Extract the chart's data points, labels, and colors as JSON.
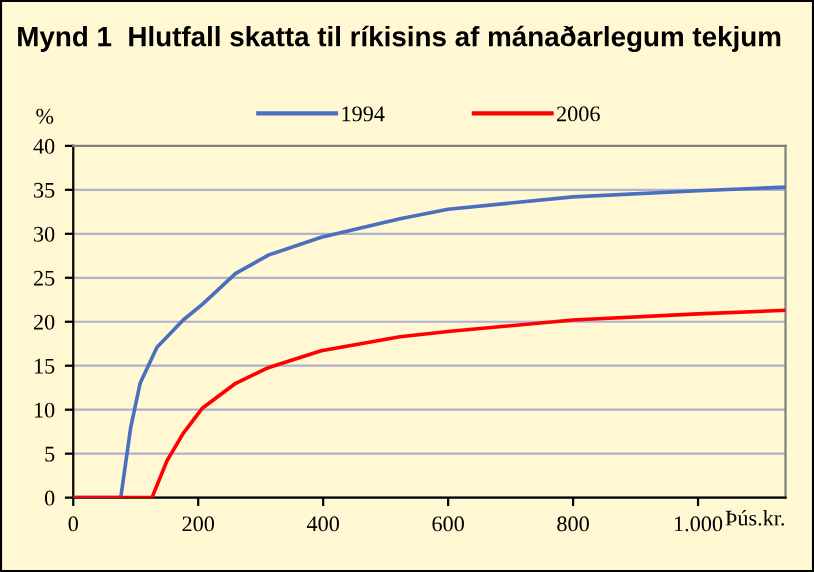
{
  "chart_data": {
    "type": "line",
    "title": "Mynd 1  Hlutfall skatta til ríkisins af mánaðarlegum tekjum",
    "xlabel": "Þús.kr.",
    "ylabel": "%",
    "series": [
      {
        "name": "1994",
        "color": "#4a6fbf",
        "x": [
          0,
          76,
          92,
          107,
          134,
          176,
          207,
          260,
          313,
          397,
          523,
          600,
          800,
          1000,
          1140
        ],
        "values": [
          0,
          0,
          8.0,
          13,
          17.1,
          20.2,
          22,
          25.5,
          27.6,
          29.6,
          31.7,
          32.8,
          34.2,
          34.9,
          35.3
        ]
      },
      {
        "name": "2006",
        "color": "#ff0000",
        "x": [
          0,
          126,
          150,
          176,
          207,
          260,
          313,
          397,
          523,
          600,
          800,
          1000,
          1140
        ],
        "values": [
          0,
          0,
          4.2,
          7.3,
          10.2,
          13,
          14.8,
          16.7,
          18.3,
          18.9,
          20.2,
          20.9,
          21.3
        ]
      }
    ],
    "xlim": [
      0,
      1140
    ],
    "xticks": [
      0,
      200,
      400,
      600,
      800,
      {
        "value": 1000,
        "label": "1.000"
      }
    ],
    "ylim": [
      0,
      40
    ],
    "yticks": [
      0,
      5,
      10,
      15,
      20,
      25,
      30,
      35,
      40
    ],
    "grid": "y",
    "legend": "top",
    "marker": "none",
    "line_style": "solid"
  }
}
